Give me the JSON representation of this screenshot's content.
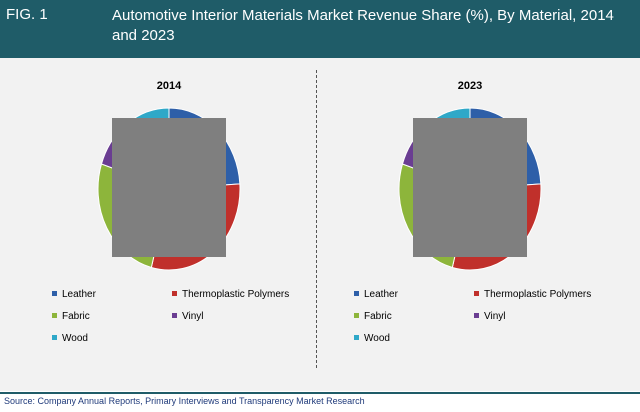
{
  "header": {
    "fig_label": "FIG. 1",
    "title": "Automotive Interior Materials Market Revenue Share (%), By Material, 2014 and 2023"
  },
  "colors": {
    "header_bg": "#1f5c68",
    "panel_bg": "#f2f2f2",
    "mask": "#7f7f7f",
    "Leather": "#2e5fa8",
    "Thermoplastic Polymers": "#c0302b",
    "Fabric": "#8db53b",
    "Vinyl": "#6a3d92",
    "Wood": "#2fa8c8"
  },
  "chart_data": [
    {
      "type": "pie",
      "title": "2014",
      "categories": [
        "Leather",
        "Thermoplastic Polymers",
        "Fabric",
        "Vinyl",
        "Wood"
      ],
      "values": [
        24,
        30,
        26,
        10,
        10
      ],
      "legend_position": "bottom",
      "note": "central area obscured by grey box"
    },
    {
      "type": "pie",
      "title": "2023",
      "categories": [
        "Leather",
        "Thermoplastic Polymers",
        "Fabric",
        "Vinyl",
        "Wood"
      ],
      "values": [
        24,
        30,
        26,
        10,
        10
      ],
      "legend_position": "bottom",
      "note": "central area obscured by grey box"
    }
  ],
  "footer": {
    "source": "Source: Company Annual Reports, Primary Interviews and Transparency Market Research"
  }
}
